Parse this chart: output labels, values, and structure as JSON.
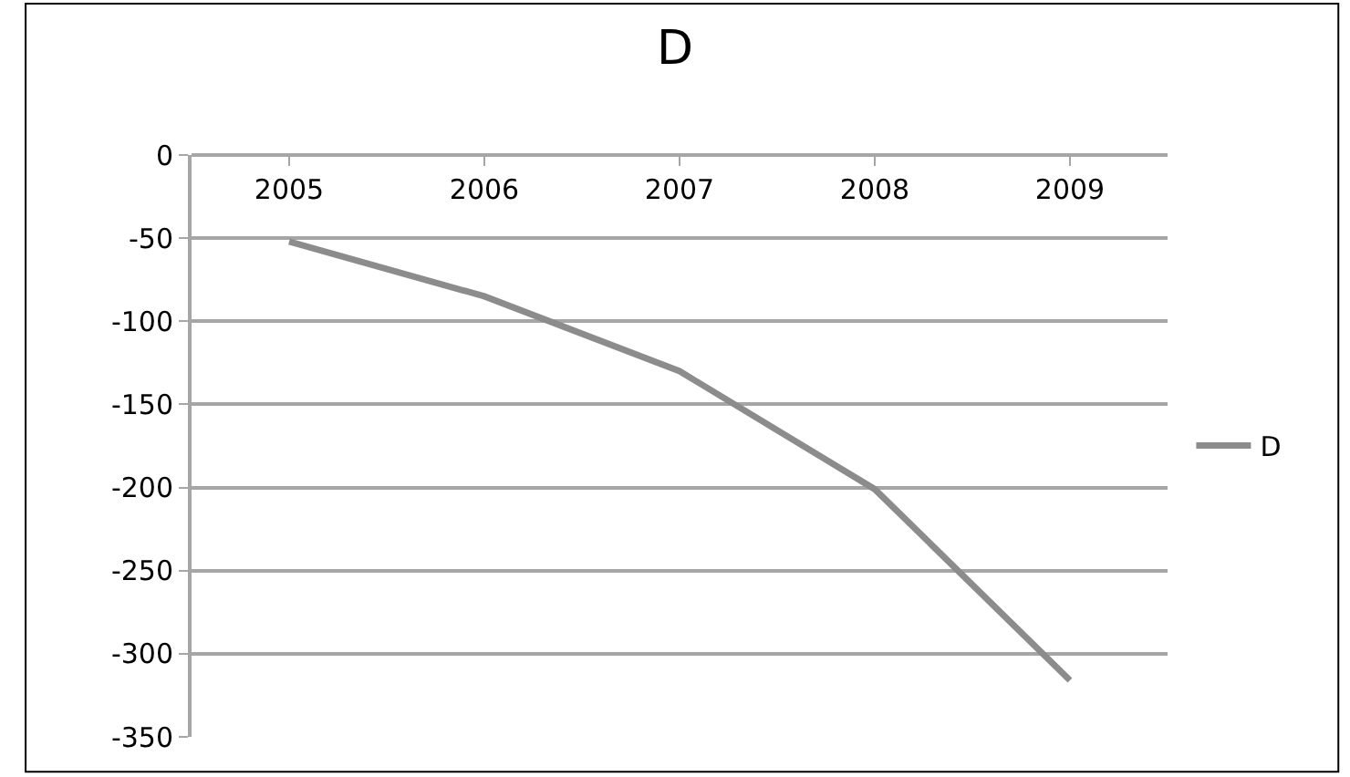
{
  "chart_data": {
    "type": "line",
    "title": "D",
    "categories": [
      "2005",
      "2006",
      "2007",
      "2008",
      "2009"
    ],
    "series": [
      {
        "name": "D",
        "color": "#8c8c8c",
        "values": [
          -52,
          -85,
          -130,
          -201,
          -316
        ]
      }
    ],
    "ylim": [
      -350,
      0
    ],
    "yticks": [
      -350,
      -300,
      -250,
      -200,
      -150,
      -100,
      -50,
      0
    ],
    "grid": "y",
    "legend": "right",
    "marker": "none",
    "line_style": "solid"
  }
}
